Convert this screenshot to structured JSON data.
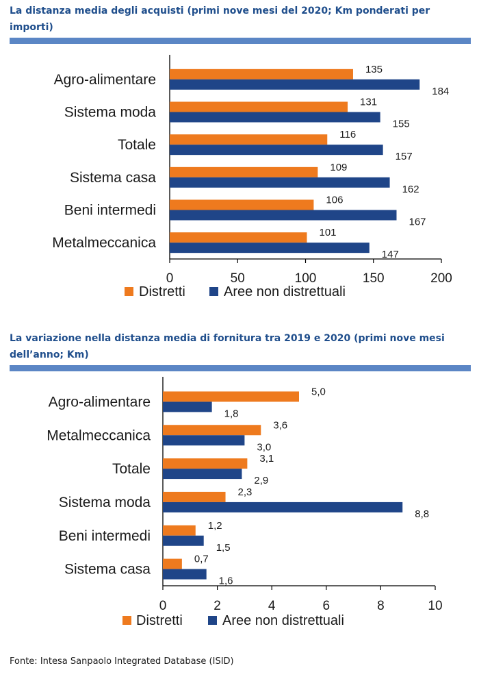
{
  "colors": {
    "distretti": "#ee7a1e",
    "aree": "#1f4588",
    "rule": "#5b86c5",
    "title": "#1f4e8c"
  },
  "chart_data": [
    {
      "type": "bar",
      "orientation": "horizontal",
      "title": "La distanza media degli acquisti (primi nove mesi del 2020; Km ponderati per importi)",
      "categories": [
        "Agro-alimentare",
        "Sistema moda",
        "Totale",
        "Sistema casa",
        "Beni intermedi",
        "Metalmeccanica"
      ],
      "series": [
        {
          "name": "Distretti",
          "values": [
            135,
            131,
            116,
            109,
            106,
            101
          ],
          "labels": [
            "135",
            "131",
            "116",
            "109",
            "106",
            "101"
          ]
        },
        {
          "name": "Aree non distrettuali",
          "values": [
            184,
            155,
            157,
            162,
            167,
            147
          ],
          "labels": [
            "184",
            "155",
            "157",
            "162",
            "167",
            "147"
          ]
        }
      ],
      "xlim": [
        0,
        200
      ],
      "ticks": [
        0,
        50,
        100,
        150,
        200
      ],
      "tick_labels": [
        "0",
        "50",
        "100",
        "150",
        "200"
      ],
      "legend_position": "bottom",
      "grid": false
    },
    {
      "type": "bar",
      "orientation": "horizontal",
      "title": "La variazione nella distanza media di fornitura tra 2019 e 2020 (primi nove mesi dell’anno; Km)",
      "categories": [
        "Agro-alimentare",
        "Metalmeccanica",
        "Totale",
        "Sistema moda",
        "Beni intermedi",
        "Sistema casa"
      ],
      "series": [
        {
          "name": "Distretti",
          "values": [
            5.0,
            3.6,
            3.1,
            2.3,
            1.2,
            0.7
          ],
          "labels": [
            "5,0",
            "3,6",
            "3,1",
            "2,3",
            "1,2",
            "0,7"
          ]
        },
        {
          "name": "Aree non distrettuali",
          "values": [
            1.8,
            3.0,
            2.9,
            8.8,
            1.5,
            1.6
          ],
          "labels": [
            "1,8",
            "3,0",
            "2,9",
            "8,8",
            "1,5",
            "1,6"
          ]
        }
      ],
      "xlim": [
        0,
        10
      ],
      "ticks": [
        0,
        2,
        4,
        6,
        8,
        10
      ],
      "tick_labels": [
        "0",
        "2",
        "4",
        "6",
        "8",
        "10"
      ],
      "legend_position": "bottom",
      "grid": false
    }
  ],
  "footer": {
    "source": "Fonte: Intesa Sanpaolo Integrated Database (ISID)"
  }
}
